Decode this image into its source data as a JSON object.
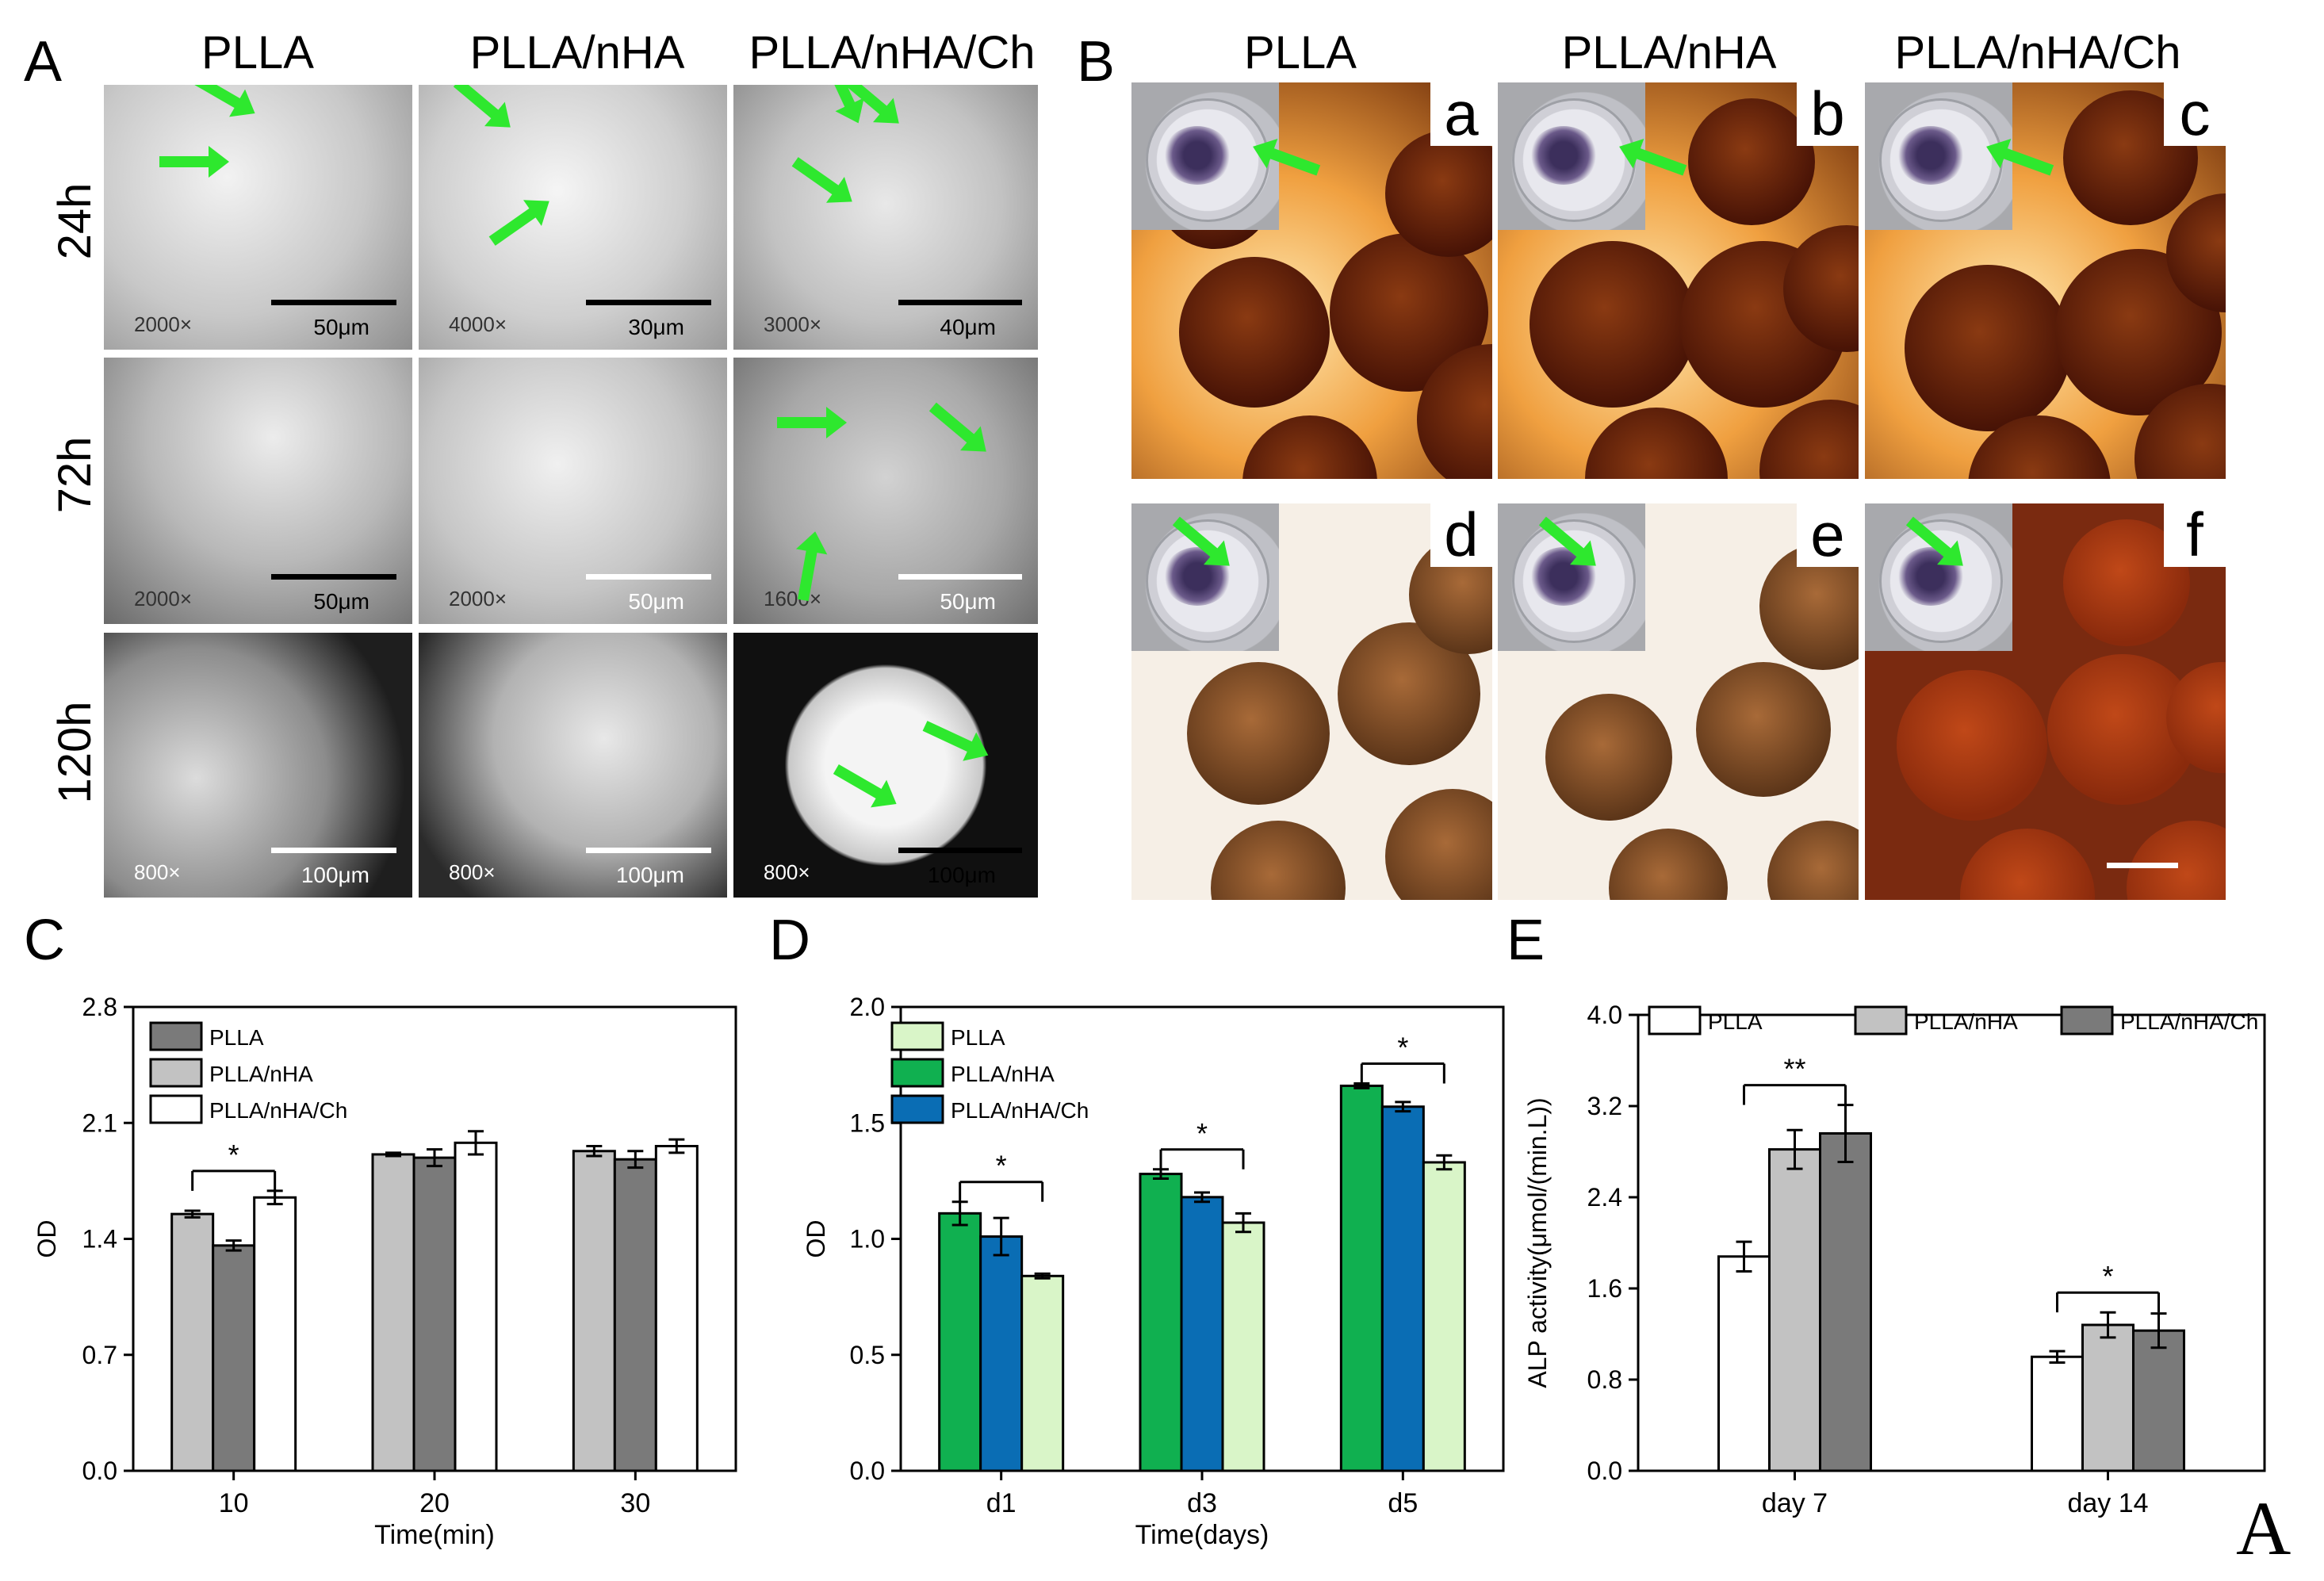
{
  "panels": {
    "A": {
      "letter": "A",
      "columns": [
        "PLLA",
        "PLLA/nHA",
        "PLLA/nHA/Ch"
      ],
      "rows": [
        "24h",
        "72h",
        "120h"
      ],
      "images": [
        [
          {
            "mag": "2000×",
            "scale": "50μm",
            "bar": "black"
          },
          {
            "mag": "4000×",
            "scale": "30μm",
            "bar": "black"
          },
          {
            "mag": "3000×",
            "scale": "40μm",
            "bar": "black"
          }
        ],
        [
          {
            "mag": "2000×",
            "scale": "50μm",
            "bar": "black"
          },
          {
            "mag": "2000×",
            "scale": "50μm",
            "bar": "white"
          },
          {
            "mag": "1600×",
            "scale": "50μm",
            "bar": "white"
          }
        ],
        [
          {
            "mag": "800×",
            "scale": "100μm",
            "bar": "white"
          },
          {
            "mag": "800×",
            "scale": "100μm",
            "bar": "white"
          },
          {
            "mag": "800×",
            "scale": "100μm",
            "bar": "black"
          }
        ]
      ],
      "arrow_color": "#2ee82e"
    },
    "B": {
      "letter": "B",
      "columns": [
        "PLLA",
        "PLLA/nHA",
        "PLLA/nHA/Ch"
      ],
      "sub_letters": [
        "a",
        "b",
        "c",
        "d",
        "e",
        "f"
      ]
    },
    "corner_mark": "A"
  },
  "chart_data": [
    {
      "type": "bar",
      "panel_letter": "C",
      "categories": [
        "10",
        "20",
        "30"
      ],
      "xlabel": "Time(min)",
      "ylabel": "OD",
      "ylim": [
        0,
        2.8
      ],
      "yticks": [
        "0.0",
        "0.7",
        "1.4",
        "2.1",
        "2.8"
      ],
      "legend_position": "top-left",
      "series": [
        {
          "name": "PLLA",
          "color": "#7a7a7a",
          "values": [
            1.36,
            1.89,
            1.88
          ],
          "errors": [
            0.03,
            0.05,
            0.05
          ]
        },
        {
          "name": "PLLA/nHA",
          "color": "#c2c2c2",
          "values": [
            1.55,
            1.91,
            1.93
          ],
          "errors": [
            0.02,
            0.01,
            0.03
          ]
        },
        {
          "name": "PLLA/nHA/Ch",
          "color": "#ffffff",
          "values": [
            1.65,
            1.98,
            1.96
          ],
          "errors": [
            0.04,
            0.07,
            0.04
          ]
        }
      ],
      "bar_order": [
        "PLLA/nHA",
        "PLLA",
        "PLLA/nHA/Ch"
      ],
      "significance": [
        {
          "category": "10",
          "label": "*"
        }
      ]
    },
    {
      "type": "bar",
      "panel_letter": "D",
      "categories": [
        "d1",
        "d3",
        "d5"
      ],
      "xlabel": "Time(days)",
      "ylabel": "OD",
      "ylim": [
        0,
        2.0
      ],
      "yticks": [
        "0.0",
        "0.5",
        "1.0",
        "1.5",
        "2.0"
      ],
      "legend_position": "top-left",
      "series": [
        {
          "name": "PLLA",
          "color": "#d9f5c8",
          "values": [
            0.84,
            1.07,
            1.33
          ],
          "errors": [
            0.01,
            0.04,
            0.03
          ]
        },
        {
          "name": "PLLA/nHA",
          "color": "#10b050",
          "values": [
            1.11,
            1.28,
            1.66
          ],
          "errors": [
            0.05,
            0.02,
            0.01
          ]
        },
        {
          "name": "PLLA/nHA/Ch",
          "color": "#0a6db4",
          "values": [
            1.01,
            1.18,
            1.57
          ],
          "errors": [
            0.08,
            0.02,
            0.02
          ]
        }
      ],
      "bar_order": [
        "PLLA/nHA",
        "PLLA/nHA/Ch",
        "PLLA"
      ],
      "significance": [
        {
          "category": "d1",
          "label": "*"
        },
        {
          "category": "d3",
          "label": "*"
        },
        {
          "category": "d5",
          "label": "*"
        }
      ]
    },
    {
      "type": "bar",
      "panel_letter": "E",
      "categories": [
        "day 7",
        "day 14"
      ],
      "xlabel": "",
      "ylabel": "ALP activity(μmol/(min.L))",
      "ylim": [
        0,
        4.0
      ],
      "yticks": [
        "0.0",
        "0.8",
        "1.6",
        "2.4",
        "3.2",
        "4.0"
      ],
      "legend_position": "top",
      "series": [
        {
          "name": "PLLA",
          "color": "#ffffff",
          "values": [
            1.88,
            1.0
          ],
          "errors": [
            0.13,
            0.05
          ]
        },
        {
          "name": "PLLA/nHA",
          "color": "#c2c2c2",
          "values": [
            2.82,
            1.28
          ],
          "errors": [
            0.17,
            0.11
          ]
        },
        {
          "name": "PLLA/nHA/Ch",
          "color": "#7a7a7a",
          "values": [
            2.96,
            1.23
          ],
          "errors": [
            0.25,
            0.15
          ]
        }
      ],
      "bar_order": [
        "PLLA",
        "PLLA/nHA",
        "PLLA/nHA/Ch"
      ],
      "significance": [
        {
          "category": "day 7",
          "label": "**"
        },
        {
          "category": "day 14",
          "label": "*"
        }
      ]
    }
  ]
}
